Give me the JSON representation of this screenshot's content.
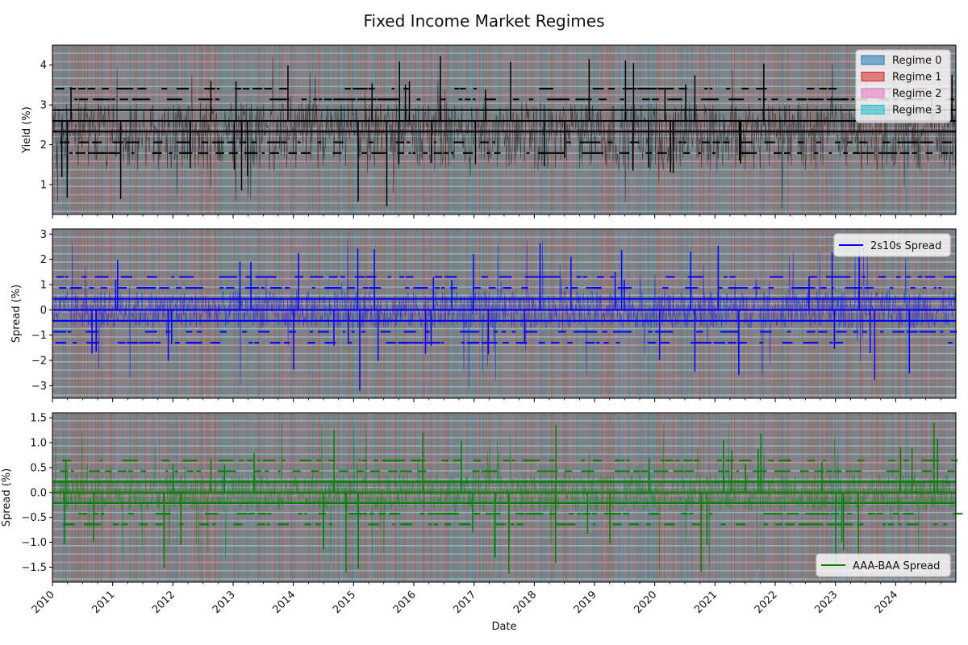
{
  "chart_data": {
    "type": "line",
    "title": "Fixed Income Market Regimes",
    "shared_x": {
      "xlabel": "Date",
      "range": [
        2010,
        2025
      ],
      "ticks": [
        {
          "value": 2010,
          "label": "2010"
        },
        {
          "value": 2011,
          "label": "2011"
        },
        {
          "value": 2012,
          "label": "2012"
        },
        {
          "value": 2013,
          "label": "2013"
        },
        {
          "value": 2014,
          "label": "2014"
        },
        {
          "value": 2015,
          "label": "2015"
        },
        {
          "value": 2016,
          "label": "2016"
        },
        {
          "value": 2017,
          "label": "2017"
        },
        {
          "value": 2018,
          "label": "2018"
        },
        {
          "value": 2019,
          "label": "2019"
        },
        {
          "value": 2020,
          "label": "2020"
        },
        {
          "value": 2021,
          "label": "2021"
        },
        {
          "value": 2022,
          "label": "2022"
        },
        {
          "value": 2023,
          "label": "2023"
        },
        {
          "value": 2024,
          "label": "2024"
        }
      ]
    },
    "regimes": [
      {
        "name": "Regime 0",
        "color": "#1f77b4"
      },
      {
        "name": "Regime 1",
        "color": "#d62728"
      },
      {
        "name": "Regime 2",
        "color": "#e377c2"
      },
      {
        "name": "Regime 3",
        "color": "#17becf"
      }
    ],
    "panels": [
      {
        "id": "yield",
        "ylabel": "Yield (%)",
        "ylim": [
          0.25,
          4.5
        ],
        "yticks": [
          {
            "value": 1,
            "label": "1"
          },
          {
            "value": 2,
            "label": "2"
          },
          {
            "value": 3,
            "label": "3"
          },
          {
            "value": 4,
            "label": "4"
          }
        ],
        "legend": "top-right",
        "series": [
          {
            "name": "Yield",
            "color": "#000000",
            "center": 2.6,
            "low_level": 1.8,
            "min": 0.4,
            "max": 4.25
          }
        ]
      },
      {
        "id": "spread2s10s",
        "ylabel": "Spread (%)",
        "ylim": [
          -3.5,
          3.2
        ],
        "yticks": [
          {
            "value": -3,
            "label": "−3"
          },
          {
            "value": -2,
            "label": "−2"
          },
          {
            "value": -1,
            "label": "−1"
          },
          {
            "value": 0,
            "label": "0"
          },
          {
            "value": 1,
            "label": "1"
          },
          {
            "value": 2,
            "label": "2"
          },
          {
            "value": 3,
            "label": "3"
          }
        ],
        "legend": "top-right",
        "series": [
          {
            "name": "2s10s Spread",
            "color": "#0000ff",
            "center": 0.0,
            "min": -3.3,
            "max": 2.9
          }
        ]
      },
      {
        "id": "aaabaa",
        "ylabel": "Spread (%)",
        "ylim": [
          -1.8,
          1.6
        ],
        "yticks": [
          {
            "value": -1.5,
            "label": "−1.5"
          },
          {
            "value": -1.0,
            "label": "−1.0"
          },
          {
            "value": -0.5,
            "label": "−0.5"
          },
          {
            "value": 0.0,
            "label": "0.0"
          },
          {
            "value": 0.5,
            "label": "0.5"
          },
          {
            "value": 1.0,
            "label": "1.0"
          },
          {
            "value": 1.5,
            "label": "1.5"
          }
        ],
        "legend": "bottom-right",
        "series": [
          {
            "name": "AAA-BAA Spread",
            "color": "#008000",
            "center": 0.0,
            "min": -1.65,
            "max": 1.4
          }
        ]
      }
    ]
  }
}
